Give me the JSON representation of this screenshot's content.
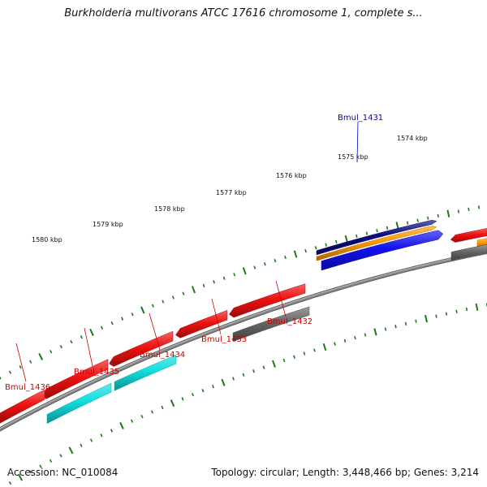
{
  "title": "Burkholderia multivorans ATCC 17616 chromosome 1, complete s...",
  "footer": {
    "accession_label": "Accession:",
    "accession": "NC_010084",
    "topology_label": "Topology:",
    "topology": "circular",
    "length_label": "Length:",
    "length": "3,448,466 bp",
    "genes_label": "Genes:",
    "genes": "3,214"
  },
  "colors": {
    "backbone": "#888888",
    "tick": "#1a7a1a",
    "gene_red": "#ee1111",
    "gene_cyan": "#11dddd",
    "gene_gray": "#666666",
    "gene_navy": "#0a0a80",
    "gene_orange": "#ff9900",
    "gene_blue": "#1111ee",
    "label_red": "#cc0000",
    "label_blue": "#0000cc"
  },
  "kbp_labels": [
    "1574 kbp",
    "1575 kbp",
    "1576 kbp",
    "1577 kbp",
    "1578 kbp",
    "1579 kbp",
    "1580 kbp"
  ],
  "gene_labels": [
    {
      "name": "Bmul_1431",
      "color": "blue"
    },
    {
      "name": "Bmul_1432",
      "color": "red"
    },
    {
      "name": "Bmul_1433",
      "color": "red"
    },
    {
      "name": "Bmul_1434",
      "color": "red"
    },
    {
      "name": "Bmul_1435",
      "color": "red"
    },
    {
      "name": "Bmul_1436",
      "color": "red"
    }
  ]
}
